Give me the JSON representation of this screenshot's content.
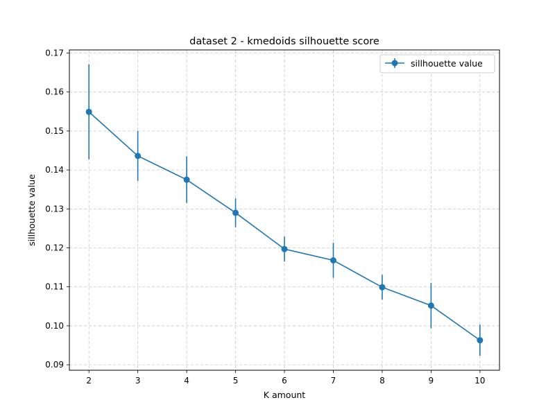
{
  "chart_data": {
    "type": "line",
    "title": "dataset 2 - kmedoids silhouette score",
    "xlabel": "K amount",
    "ylabel": "sillhouette value",
    "x": [
      2,
      3,
      4,
      5,
      6,
      7,
      8,
      9,
      10
    ],
    "series": [
      {
        "name": "sillhouette value",
        "values": [
          0.1549,
          0.1436,
          0.1375,
          0.129,
          0.1197,
          0.1168,
          0.1099,
          0.1052,
          0.0963
        ],
        "error": [
          0.0122,
          0.0064,
          0.006,
          0.0037,
          0.0032,
          0.0045,
          0.0032,
          0.0058,
          0.004
        ],
        "color": "#1f77b4"
      }
    ],
    "xticks": [
      2,
      3,
      4,
      5,
      6,
      7,
      8,
      9,
      10
    ],
    "yticks": [
      0.09,
      0.1,
      0.11,
      0.12,
      0.13,
      0.14,
      0.15,
      0.16,
      0.17
    ],
    "ytick_labels": [
      "0.09",
      "0.10",
      "0.11",
      "0.12",
      "0.13",
      "0.14",
      "0.15",
      "0.16",
      "0.17"
    ],
    "xlim": [
      1.6,
      10.4
    ],
    "ylim": [
      0.0886,
      0.1708
    ],
    "grid": true,
    "legend_position": "top-right"
  }
}
